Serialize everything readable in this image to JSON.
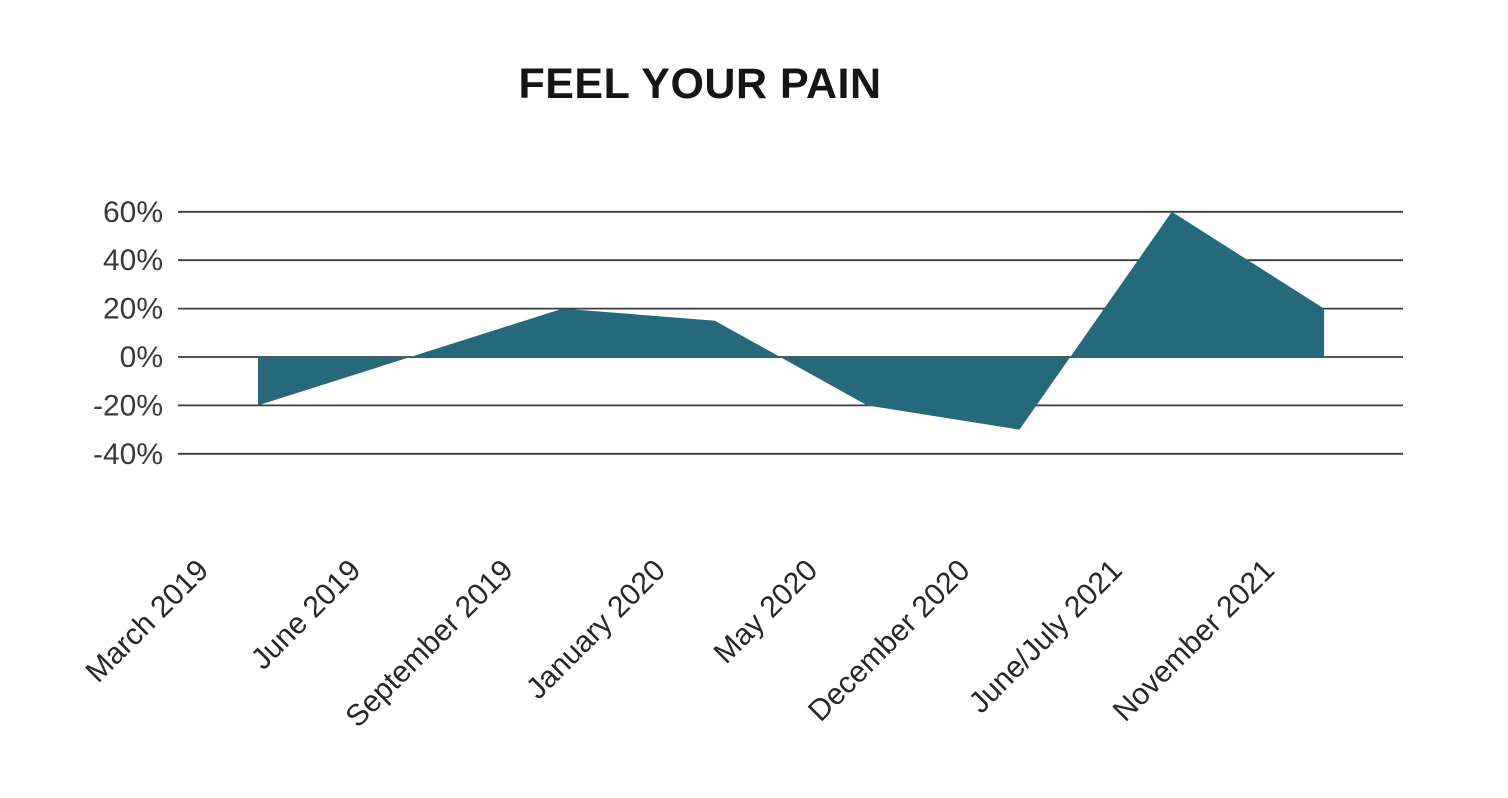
{
  "chart": {
    "title": "FEEL YOUR PAIN"
  },
  "chart_data": {
    "type": "area",
    "title": "FEEL YOUR PAIN",
    "categories": [
      "March 2019",
      "June 2019",
      "September 2019",
      "January 2020",
      "May 2020",
      "December 2020",
      "June/July 2021",
      "November 2021"
    ],
    "values": [
      -20,
      0,
      20,
      15,
      -20,
      -30,
      60,
      20
    ],
    "unit": "%",
    "yticks": [
      "60%",
      "40%",
      "20%",
      "0%",
      "-20%",
      "-40%"
    ],
    "ytick_values": [
      60,
      40,
      20,
      0,
      -20,
      -40
    ],
    "ylim": [
      -40,
      60
    ],
    "baseline": 0,
    "grid": "horizontal",
    "legend": "none",
    "xlabel": "",
    "ylabel": "",
    "fill_color": "#26697A",
    "gridline_color": "#3c3c3c",
    "background_color": "#FFFFFF",
    "title_color": "#151515"
  }
}
